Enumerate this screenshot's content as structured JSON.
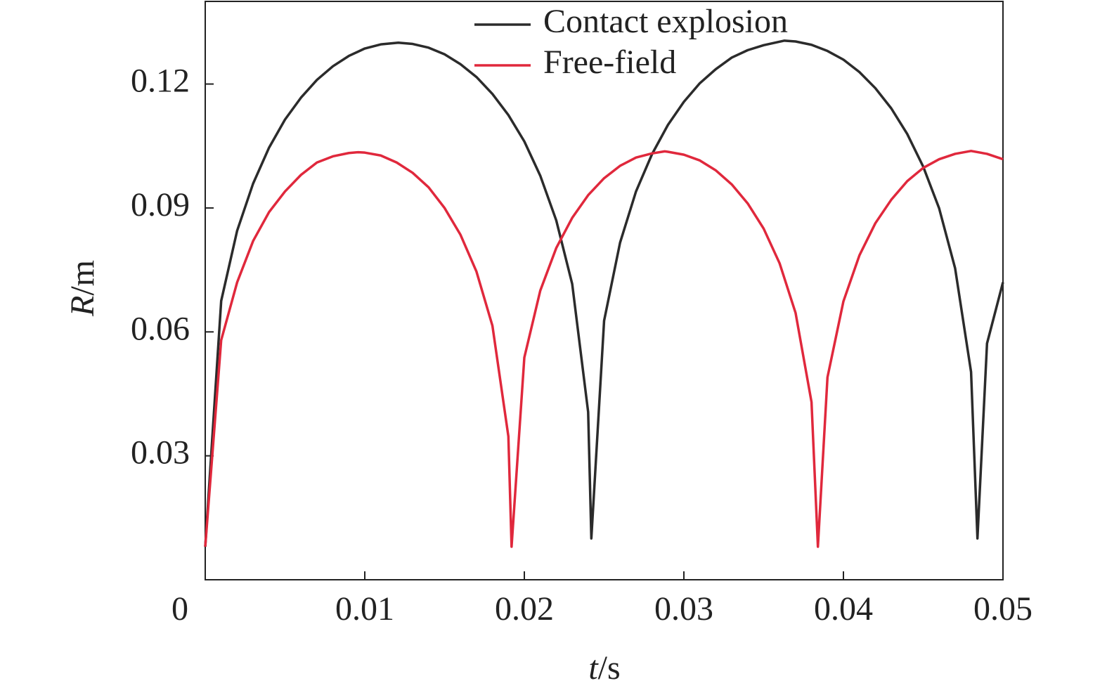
{
  "chart_data": {
    "type": "line",
    "xlabel": "t/s",
    "ylabel": "R/m",
    "xlim": [
      0,
      0.05
    ],
    "ylim": [
      0,
      0.14
    ],
    "xticks": [
      0,
      0.01,
      0.02,
      0.03,
      0.04,
      0.05
    ],
    "yticks": [
      0.03,
      0.06,
      0.09,
      0.12
    ],
    "legend": "top",
    "series": [
      {
        "name": "Contact explosion",
        "color": "#2b2b2b",
        "x": [
          0,
          0.001,
          0.002,
          0.003,
          0.004,
          0.005,
          0.006,
          0.007,
          0.008,
          0.009,
          0.01,
          0.011,
          0.0121,
          0.013,
          0.014,
          0.015,
          0.016,
          0.017,
          0.018,
          0.019,
          0.02,
          0.021,
          0.022,
          0.023,
          0.024,
          0.0242,
          0.025,
          0.026,
          0.027,
          0.028,
          0.029,
          0.03,
          0.031,
          0.032,
          0.033,
          0.034,
          0.035,
          0.0363,
          0.037,
          0.038,
          0.039,
          0.04,
          0.041,
          0.042,
          0.043,
          0.044,
          0.045,
          0.046,
          0.047,
          0.048,
          0.0484,
          0.049,
          0.05
        ],
        "values": [
          0.008,
          0.0675,
          0.0845,
          0.0959,
          0.1046,
          0.1114,
          0.1167,
          0.121,
          0.1243,
          0.1268,
          0.1286,
          0.1296,
          0.13,
          0.1297,
          0.1288,
          0.1272,
          0.1248,
          0.1217,
          0.1176,
          0.1125,
          0.1061,
          0.0978,
          0.087,
          0.0716,
          0.0406,
          0.01,
          0.0627,
          0.0816,
          0.094,
          0.103,
          0.1101,
          0.1157,
          0.1202,
          0.1236,
          0.1264,
          0.1282,
          0.1294,
          0.1305,
          0.1303,
          0.1295,
          0.128,
          0.1259,
          0.1229,
          0.119,
          0.1141,
          0.1079,
          0.1,
          0.0899,
          0.0754,
          0.0503,
          0.01,
          0.0572,
          0.072
        ]
      },
      {
        "name": "Free-field",
        "color": "#e0283c",
        "x": [
          0,
          0.001,
          0.002,
          0.003,
          0.004,
          0.005,
          0.006,
          0.007,
          0.008,
          0.009,
          0.0096,
          0.01,
          0.011,
          0.012,
          0.013,
          0.014,
          0.015,
          0.016,
          0.017,
          0.018,
          0.019,
          0.0192,
          0.02,
          0.021,
          0.022,
          0.023,
          0.024,
          0.025,
          0.026,
          0.027,
          0.028,
          0.0288,
          0.029,
          0.03,
          0.031,
          0.032,
          0.033,
          0.034,
          0.035,
          0.036,
          0.037,
          0.038,
          0.0384,
          0.039,
          0.04,
          0.041,
          0.042,
          0.043,
          0.044,
          0.045,
          0.046,
          0.047,
          0.048,
          0.049,
          0.05
        ],
        "values": [
          0.008,
          0.058,
          0.072,
          0.082,
          0.089,
          0.094,
          0.098,
          0.101,
          0.1025,
          0.1033,
          0.1035,
          0.1034,
          0.1027,
          0.101,
          0.0985,
          0.095,
          0.09,
          0.0835,
          0.0746,
          0.0615,
          0.0347,
          0.008,
          0.0538,
          0.07,
          0.0803,
          0.0876,
          0.0931,
          0.0972,
          0.1002,
          0.1022,
          0.1032,
          0.1037,
          0.1036,
          0.1029,
          0.1015,
          0.0991,
          0.0957,
          0.0911,
          0.085,
          0.0766,
          0.0646,
          0.043,
          0.008,
          0.049,
          0.0674,
          0.0785,
          0.0863,
          0.092,
          0.0965,
          0.0997,
          0.1018,
          0.1031,
          0.1038,
          0.1031,
          0.1018
        ]
      }
    ]
  }
}
